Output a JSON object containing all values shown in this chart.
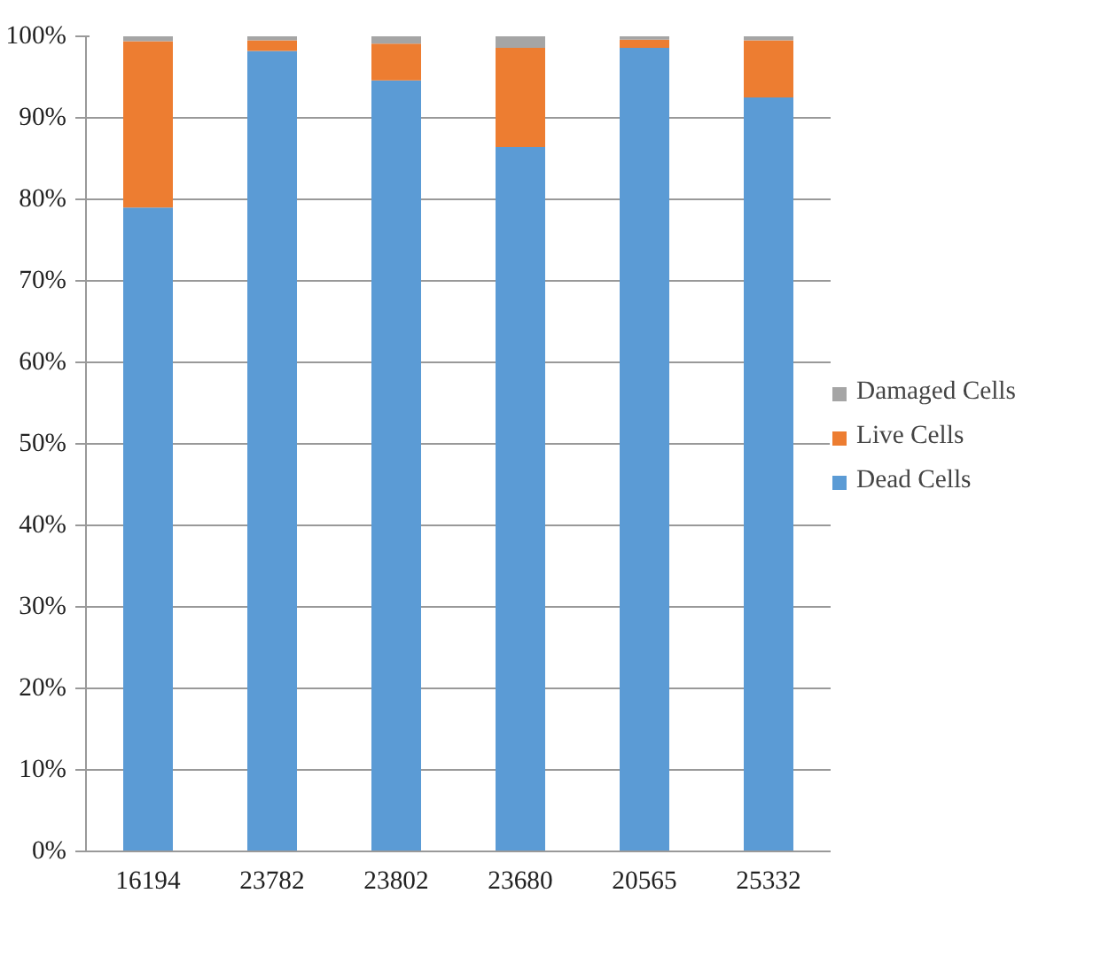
{
  "chart_data": {
    "type": "bar",
    "stacked": true,
    "categories": [
      "16194",
      "23782",
      "23802",
      "23680",
      "20565",
      "25332"
    ],
    "series": [
      {
        "name": "Dead Cells",
        "color": "#5b9bd5",
        "values": [
          79.0,
          98.2,
          94.6,
          86.4,
          98.6,
          92.5
        ]
      },
      {
        "name": "Live Cells",
        "color": "#ed7d31",
        "values": [
          20.4,
          1.3,
          4.5,
          12.2,
          1.0,
          7.0
        ]
      },
      {
        "name": "Damaged Cells",
        "color": "#a5a5a5",
        "values": [
          0.6,
          0.5,
          0.9,
          1.4,
          0.4,
          0.5
        ]
      }
    ],
    "ylim": [
      0,
      100
    ],
    "yticks": [
      {
        "value": 0,
        "label": "0%"
      },
      {
        "value": 10,
        "label": "10%"
      },
      {
        "value": 20,
        "label": "20%"
      },
      {
        "value": 30,
        "label": "30%"
      },
      {
        "value": 40,
        "label": "40%"
      },
      {
        "value": 50,
        "label": "50%"
      },
      {
        "value": 60,
        "label": "60%"
      },
      {
        "value": 70,
        "label": "70%"
      },
      {
        "value": 80,
        "label": "80%"
      },
      {
        "value": 90,
        "label": "90%"
      },
      {
        "value": 100,
        "label": "100%"
      }
    ],
    "grid": "y",
    "legend": "right"
  }
}
